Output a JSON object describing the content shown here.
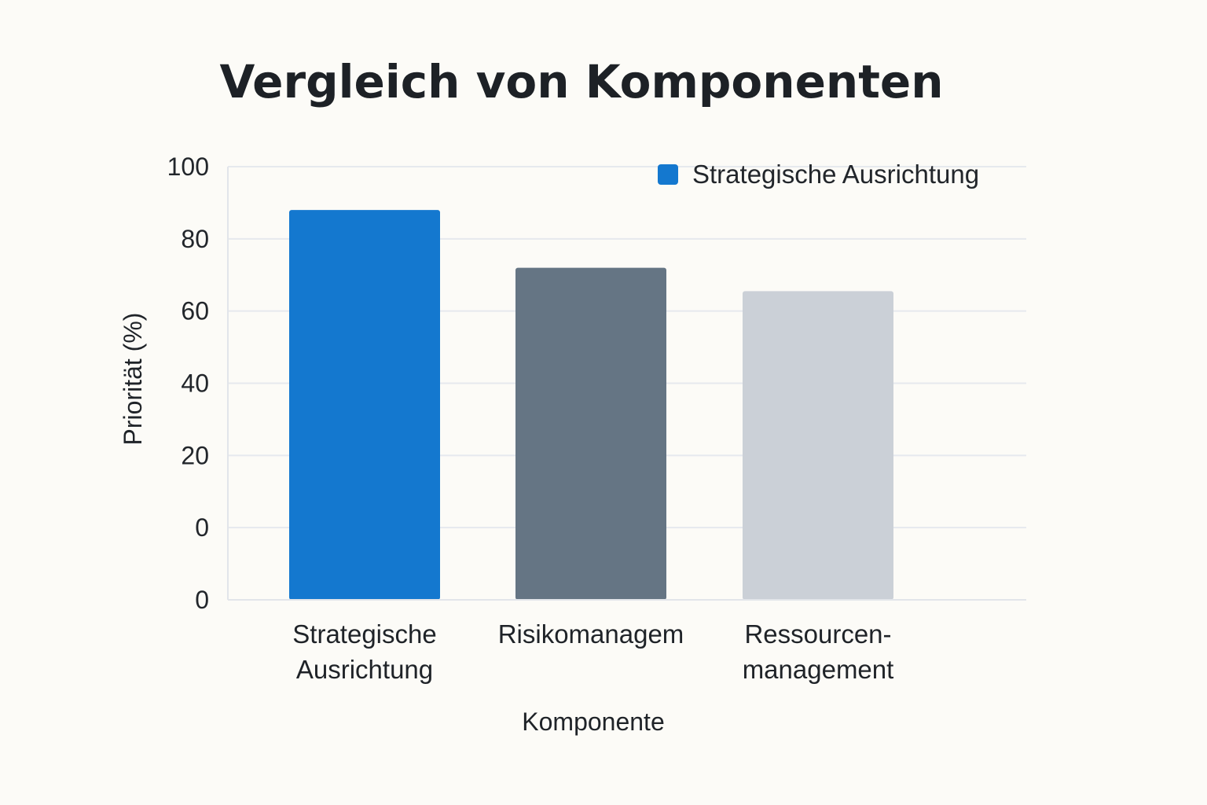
{
  "chart_data": {
    "type": "bar",
    "title": "Vergleich von Komponenten",
    "xlabel": "Komponente",
    "ylabel": "Priorität (%)",
    "y_tick_labels": [
      "100",
      "80",
      "60",
      "40",
      "20",
      "0",
      "0"
    ],
    "ylim": [
      0,
      120
    ],
    "grid": true,
    "legend_position": "top-right",
    "categories": [
      [
        "Strategische",
        "Ausrichtung"
      ],
      [
        "Risikomanagem"
      ],
      [
        "Ressourcen-",
        "management"
      ]
    ],
    "values": [
      108,
      92,
      85.5
    ],
    "bar_colors": [
      "#1478cf",
      "#657584",
      "#cbd0d7"
    ],
    "series": [
      {
        "name": "Strategische Ausrichtung",
        "color": "#1478cf"
      }
    ]
  }
}
